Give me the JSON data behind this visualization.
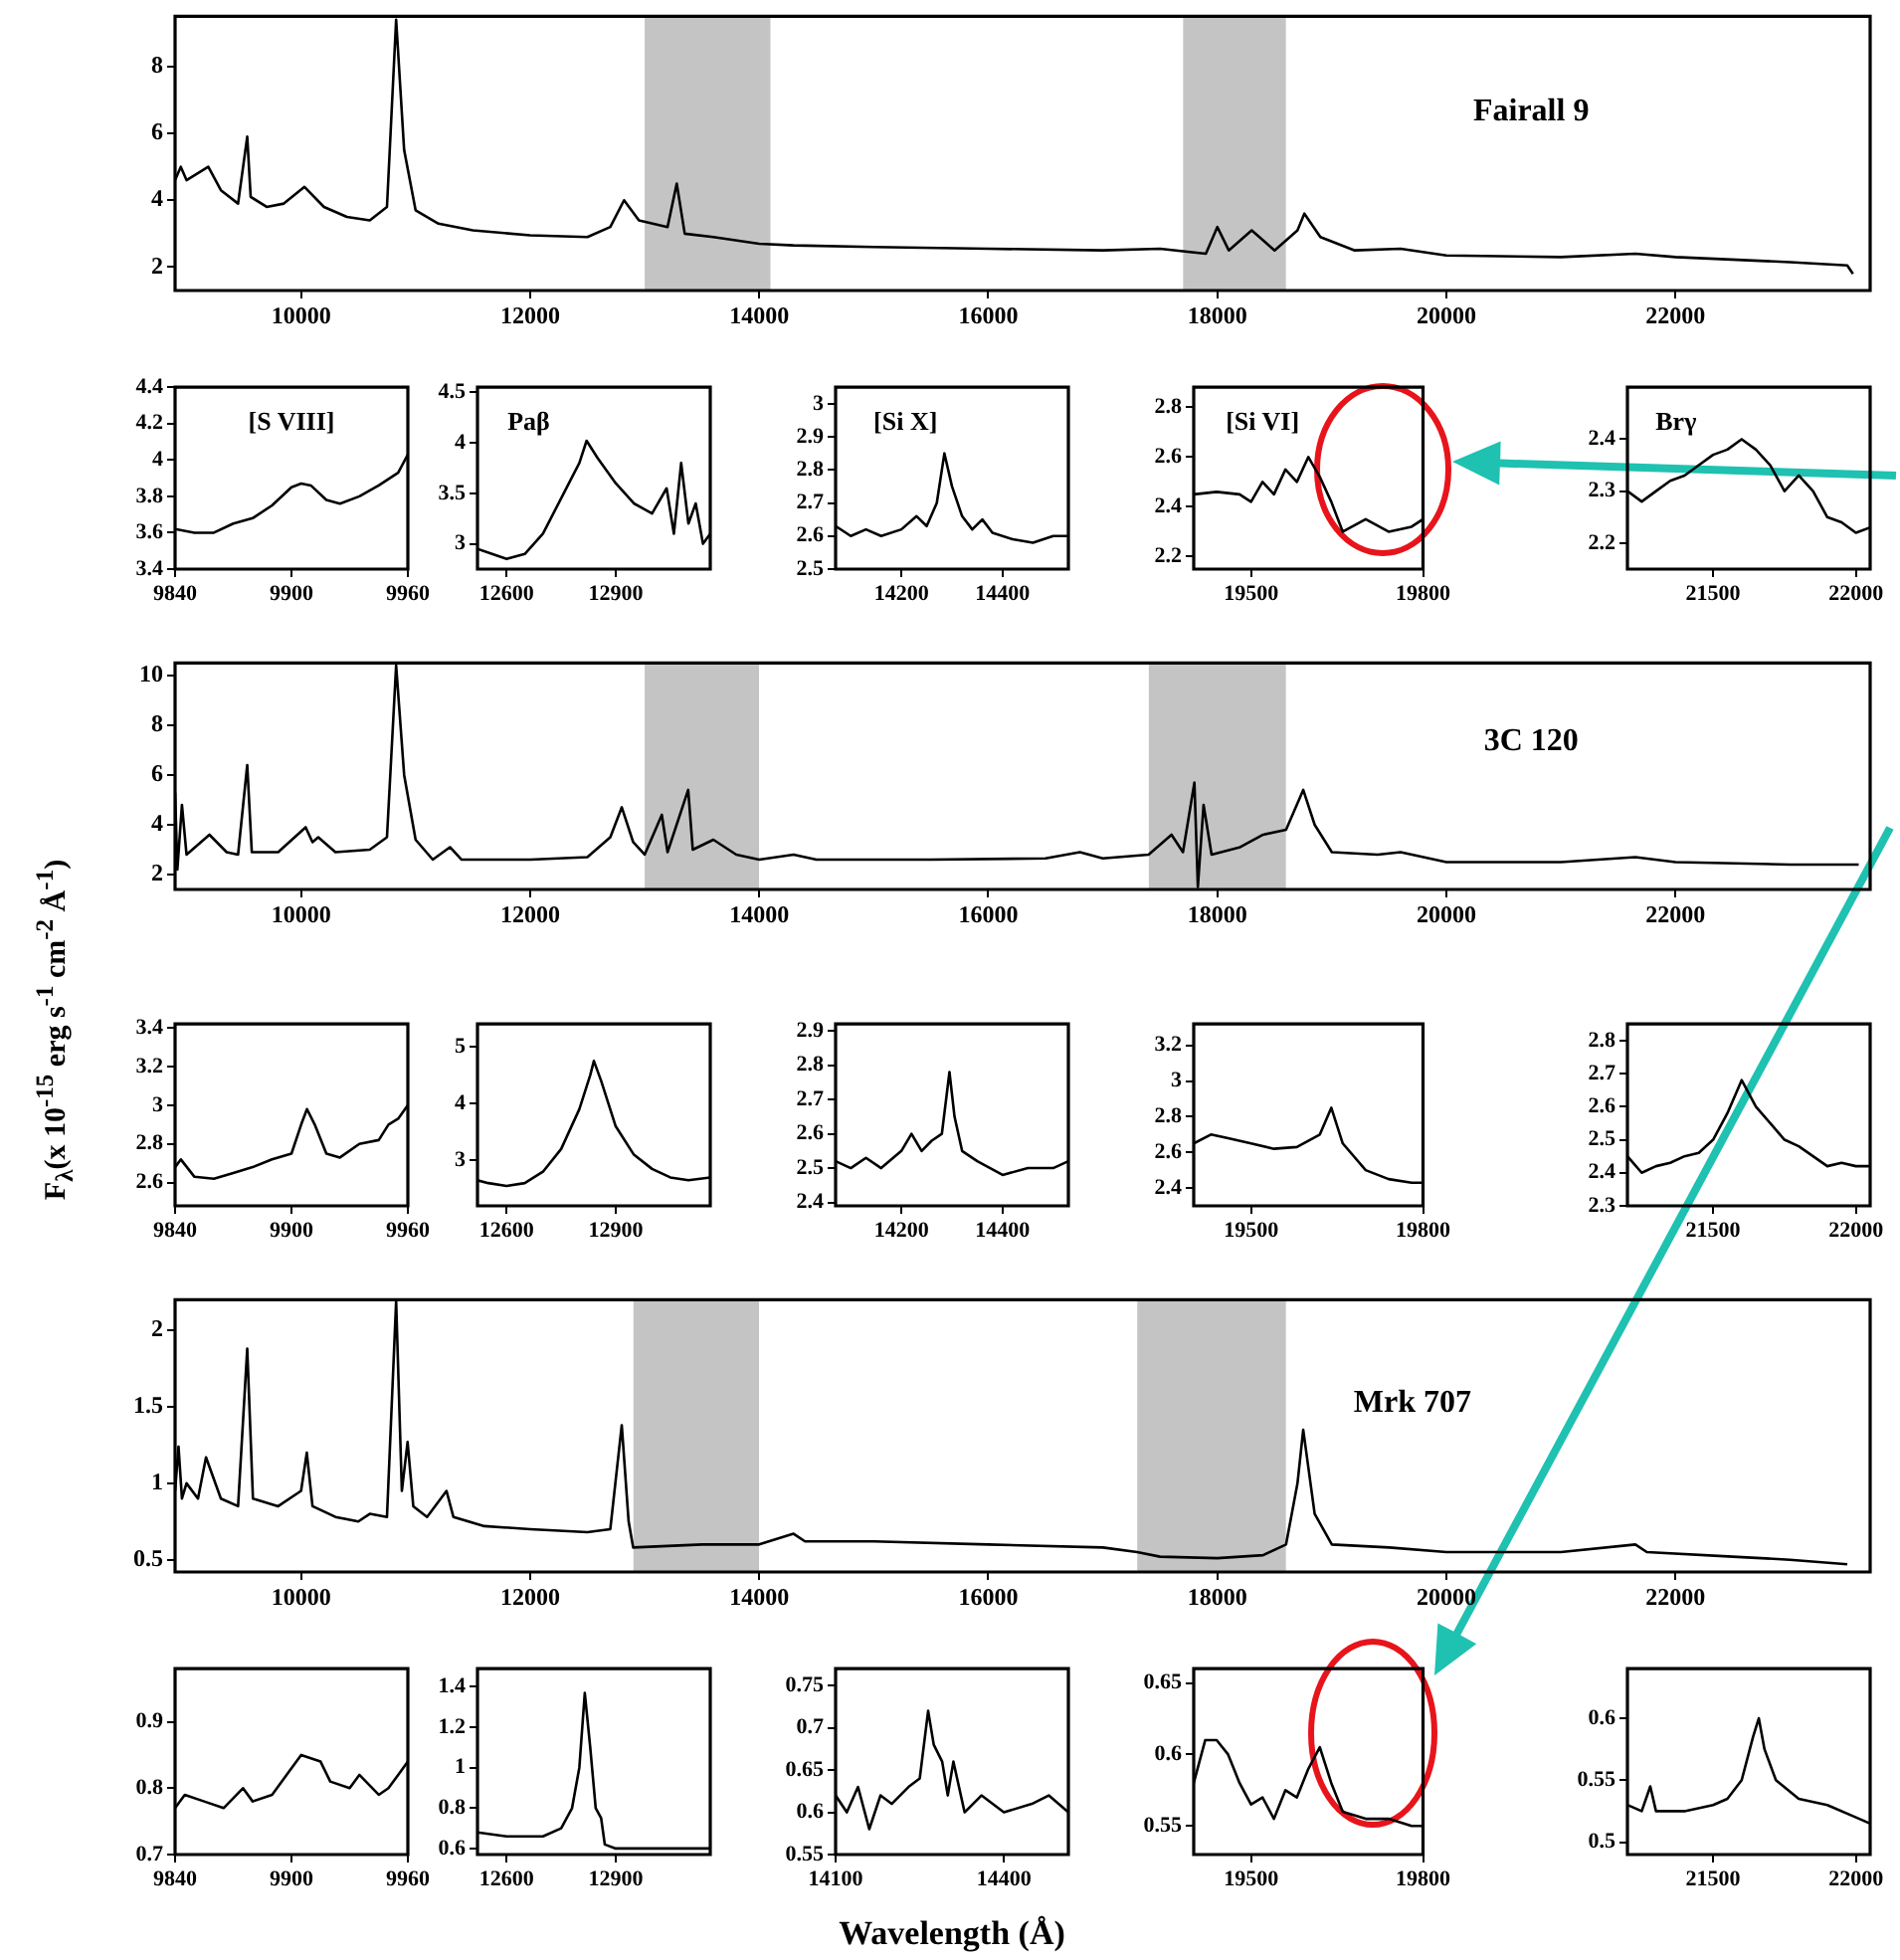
{
  "chart_data": [
    {
      "type": "line",
      "annotations": [
        "Fairall 9"
      ],
      "color": "#000000",
      "xlim": [
        8900,
        23700
      ],
      "ylim": [
        1.3,
        9.5
      ],
      "xticks": [
        10000,
        12000,
        14000,
        16000,
        18000,
        20000,
        22000
      ],
      "yticks": [
        2,
        4,
        6,
        8
      ],
      "bands": [
        {
          "axis": "x",
          "from": 13000,
          "to": 14100,
          "color": "#c4c4c4"
        },
        {
          "axis": "x",
          "from": 17700,
          "to": 18600,
          "color": "#c4c4c4"
        }
      ],
      "x": [
        8900,
        8950,
        9000,
        9190,
        9300,
        9450,
        9530,
        9560,
        9700,
        9850,
        10030,
        10200,
        10400,
        10600,
        10750,
        10830,
        10900,
        11000,
        11200,
        11500,
        12000,
        12500,
        12700,
        12820,
        12950,
        13200,
        13280,
        13350,
        13600,
        14000,
        14300,
        15000,
        16000,
        17000,
        17500,
        17900,
        18000,
        18100,
        18300,
        18500,
        18700,
        18760,
        18900,
        19200,
        19600,
        20000,
        21000,
        21650,
        22000,
        23000,
        23500,
        23550
      ],
      "values": [
        4.6,
        5.0,
        4.6,
        5.0,
        4.3,
        3.9,
        5.9,
        4.1,
        3.8,
        3.9,
        4.4,
        3.8,
        3.5,
        3.4,
        3.8,
        9.4,
        5.5,
        3.7,
        3.3,
        3.1,
        2.95,
        2.9,
        3.2,
        4.0,
        3.4,
        3.2,
        4.5,
        3.0,
        2.9,
        2.7,
        2.65,
        2.6,
        2.55,
        2.5,
        2.55,
        2.4,
        3.2,
        2.5,
        3.1,
        2.5,
        3.1,
        3.6,
        2.9,
        2.5,
        2.55,
        2.35,
        2.3,
        2.4,
        2.3,
        2.15,
        2.05,
        1.8
      ]
    },
    {
      "type": "line",
      "annotations": [
        "[S VIII]"
      ],
      "color": "#000000",
      "xlim": [
        9840,
        9960
      ],
      "ylim": [
        3.4,
        4.4
      ],
      "xticks": [
        9840,
        9900,
        9960
      ],
      "yticks": [
        3.4,
        3.6,
        3.8,
        4,
        4.2,
        4.4
      ],
      "x": [
        9840,
        9850,
        9860,
        9870,
        9880,
        9890,
        9900,
        9905,
        9910,
        9918,
        9925,
        9935,
        9945,
        9955,
        9960
      ],
      "values": [
        3.62,
        3.6,
        3.6,
        3.65,
        3.68,
        3.75,
        3.85,
        3.87,
        3.86,
        3.78,
        3.76,
        3.8,
        3.86,
        3.93,
        4.03
      ]
    },
    {
      "type": "line",
      "annotations": [
        "Paβ"
      ],
      "color": "#000000",
      "xlim": [
        12520,
        13160
      ],
      "ylim": [
        2.75,
        4.55
      ],
      "xticks": [
        12600,
        12900
      ],
      "yticks": [
        3,
        3.5,
        4,
        4.5
      ],
      "x": [
        12520,
        12560,
        12600,
        12650,
        12700,
        12750,
        12800,
        12820,
        12850,
        12900,
        12950,
        13000,
        13040,
        13060,
        13080,
        13100,
        13120,
        13140,
        13160
      ],
      "values": [
        2.95,
        2.9,
        2.85,
        2.9,
        3.1,
        3.45,
        3.8,
        4.02,
        3.85,
        3.6,
        3.4,
        3.3,
        3.55,
        3.1,
        3.8,
        3.2,
        3.4,
        3.0,
        3.1
      ]
    },
    {
      "type": "line",
      "annotations": [
        "[Si X]"
      ],
      "color": "#000000",
      "xlim": [
        14070,
        14530
      ],
      "ylim": [
        2.5,
        3.05
      ],
      "xticks": [
        14200,
        14400
      ],
      "yticks": [
        2.5,
        2.6,
        2.7,
        2.8,
        2.9,
        3
      ],
      "x": [
        14070,
        14100,
        14130,
        14160,
        14200,
        14230,
        14250,
        14270,
        14285,
        14300,
        14320,
        14340,
        14360,
        14380,
        14420,
        14460,
        14500,
        14530
      ],
      "values": [
        2.63,
        2.6,
        2.62,
        2.6,
        2.62,
        2.66,
        2.63,
        2.7,
        2.85,
        2.75,
        2.66,
        2.62,
        2.65,
        2.61,
        2.59,
        2.58,
        2.6,
        2.6
      ]
    },
    {
      "type": "line",
      "annotations": [
        "[Si VI]"
      ],
      "color": "#000000",
      "xlim": [
        19400,
        19800
      ],
      "ylim": [
        2.15,
        2.88
      ],
      "xticks": [
        19500,
        19800
      ],
      "yticks": [
        2.2,
        2.4,
        2.6,
        2.8
      ],
      "x": [
        19400,
        19440,
        19480,
        19500,
        19520,
        19540,
        19560,
        19580,
        19600,
        19620,
        19640,
        19660,
        19700,
        19740,
        19780,
        19800
      ],
      "values": [
        2.45,
        2.46,
        2.45,
        2.42,
        2.5,
        2.45,
        2.55,
        2.5,
        2.6,
        2.52,
        2.42,
        2.3,
        2.35,
        2.3,
        2.32,
        2.35
      ]
    },
    {
      "type": "line",
      "annotations": [
        "Brγ"
      ],
      "color": "#000000",
      "xlim": [
        21200,
        22050
      ],
      "ylim": [
        2.15,
        2.5
      ],
      "xticks": [
        21500,
        22000
      ],
      "yticks": [
        2.2,
        2.3,
        2.4
      ],
      "x": [
        21200,
        21250,
        21300,
        21350,
        21400,
        21450,
        21500,
        21550,
        21600,
        21650,
        21700,
        21750,
        21800,
        21850,
        21900,
        21950,
        22000,
        22050
      ],
      "values": [
        2.3,
        2.28,
        2.3,
        2.32,
        2.33,
        2.35,
        2.37,
        2.38,
        2.4,
        2.38,
        2.35,
        2.3,
        2.33,
        2.3,
        2.25,
        2.24,
        2.22,
        2.23
      ]
    },
    {
      "type": "line",
      "annotations": [
        "3C 120"
      ],
      "ylabel": "F$_{λ}$(x 10$^{-15}$ erg s$^{-1}$ cm$^{-2}$ Å$^{-1}$)",
      "color": "#000000",
      "xlim": [
        8900,
        23700
      ],
      "ylim": [
        1.4,
        10.5
      ],
      "xticks": [
        10000,
        12000,
        14000,
        16000,
        18000,
        20000,
        22000
      ],
      "yticks": [
        2,
        4,
        6,
        8,
        10
      ],
      "bands": [
        {
          "axis": "x",
          "from": 13000,
          "to": 14000,
          "color": "#c4c4c4"
        },
        {
          "axis": "x",
          "from": 17400,
          "to": 18600,
          "color": "#c4c4c4"
        }
      ],
      "x": [
        8900,
        8920,
        8960,
        9000,
        9050,
        9200,
        9350,
        9450,
        9530,
        9570,
        9800,
        10040,
        10100,
        10150,
        10300,
        10600,
        10750,
        10830,
        10900,
        11000,
        11150,
        11300,
        11400,
        12000,
        12500,
        12700,
        12800,
        12900,
        13000,
        13150,
        13200,
        13380,
        13420,
        13600,
        13800,
        14000,
        14300,
        14500,
        15500,
        16500,
        16800,
        17000,
        17400,
        17600,
        17700,
        17800,
        17830,
        17880,
        17950,
        18200,
        18400,
        18600,
        18750,
        18850,
        19000,
        19400,
        19600,
        20000,
        21000,
        21650,
        22000,
        23000,
        23600
      ],
      "values": [
        5.3,
        2.2,
        4.8,
        2.8,
        3.0,
        3.6,
        2.9,
        2.8,
        6.4,
        2.9,
        2.9,
        3.9,
        3.3,
        3.5,
        2.9,
        3.0,
        3.5,
        10.4,
        6.0,
        3.4,
        2.6,
        3.1,
        2.6,
        2.6,
        2.7,
        3.5,
        4.7,
        3.3,
        2.8,
        4.4,
        2.9,
        5.4,
        3.0,
        3.4,
        2.8,
        2.6,
        2.8,
        2.6,
        2.6,
        2.65,
        2.9,
        2.65,
        2.8,
        3.6,
        2.9,
        5.7,
        1.5,
        4.8,
        2.8,
        3.1,
        3.6,
        3.8,
        5.4,
        4.0,
        2.9,
        2.8,
        2.9,
        2.5,
        2.5,
        2.7,
        2.5,
        2.4,
        2.4
      ]
    },
    {
      "type": "line",
      "color": "#000000",
      "xlim": [
        9840,
        9960
      ],
      "ylim": [
        2.48,
        3.42
      ],
      "xticks": [
        9840,
        9900,
        9960
      ],
      "yticks": [
        2.6,
        2.8,
        3,
        3.2,
        3.4
      ],
      "x": [
        9840,
        9843,
        9850,
        9860,
        9870,
        9880,
        9890,
        9900,
        9905,
        9908,
        9912,
        9918,
        9925,
        9935,
        9945,
        9950,
        9955,
        9960
      ],
      "values": [
        2.68,
        2.72,
        2.63,
        2.62,
        2.65,
        2.68,
        2.72,
        2.75,
        2.9,
        2.98,
        2.9,
        2.75,
        2.73,
        2.8,
        2.82,
        2.9,
        2.93,
        3.0
      ]
    },
    {
      "type": "line",
      "color": "#000000",
      "xlim": [
        12520,
        13160
      ],
      "ylim": [
        2.2,
        5.4
      ],
      "xticks": [
        12600,
        12900
      ],
      "yticks": [
        3,
        4,
        5
      ],
      "x": [
        12520,
        12550,
        12600,
        12650,
        12700,
        12750,
        12800,
        12830,
        12840,
        12860,
        12900,
        12950,
        13000,
        13050,
        13100,
        13160
      ],
      "values": [
        2.65,
        2.6,
        2.55,
        2.6,
        2.8,
        3.2,
        3.9,
        4.5,
        4.75,
        4.4,
        3.6,
        3.1,
        2.85,
        2.7,
        2.65,
        2.7
      ]
    },
    {
      "type": "line",
      "color": "#000000",
      "xlim": [
        14070,
        14530
      ],
      "ylim": [
        2.39,
        2.92
      ],
      "xticks": [
        14200,
        14400
      ],
      "yticks": [
        2.4,
        2.5,
        2.6,
        2.7,
        2.8,
        2.9
      ],
      "x": [
        14070,
        14100,
        14130,
        14160,
        14200,
        14220,
        14240,
        14260,
        14280,
        14295,
        14305,
        14320,
        14350,
        14400,
        14450,
        14500,
        14530
      ],
      "values": [
        2.52,
        2.5,
        2.53,
        2.5,
        2.55,
        2.6,
        2.55,
        2.58,
        2.6,
        2.78,
        2.65,
        2.55,
        2.52,
        2.48,
        2.5,
        2.5,
        2.52
      ]
    },
    {
      "type": "line",
      "color": "#000000",
      "xlim": [
        19400,
        19800
      ],
      "ylim": [
        2.3,
        3.32
      ],
      "xticks": [
        19500,
        19800
      ],
      "yticks": [
        2.4,
        2.6,
        2.8,
        3,
        3.2
      ],
      "x": [
        19400,
        19430,
        19460,
        19500,
        19540,
        19580,
        19620,
        19640,
        19660,
        19700,
        19740,
        19780,
        19800
      ],
      "values": [
        2.65,
        2.7,
        2.68,
        2.65,
        2.62,
        2.63,
        2.7,
        2.85,
        2.65,
        2.5,
        2.45,
        2.43,
        2.43
      ]
    },
    {
      "type": "line",
      "color": "#000000",
      "xlim": [
        21200,
        22050
      ],
      "ylim": [
        2.3,
        2.85
      ],
      "xticks": [
        21500,
        22000
      ],
      "yticks": [
        2.3,
        2.4,
        2.5,
        2.6,
        2.7,
        2.8
      ],
      "x": [
        21200,
        21250,
        21300,
        21350,
        21400,
        21450,
        21500,
        21550,
        21600,
        21650,
        21700,
        21750,
        21800,
        21850,
        21900,
        21950,
        22000,
        22050
      ],
      "values": [
        2.45,
        2.4,
        2.42,
        2.43,
        2.45,
        2.46,
        2.5,
        2.58,
        2.68,
        2.6,
        2.55,
        2.5,
        2.48,
        2.45,
        2.42,
        2.43,
        2.42,
        2.42
      ]
    },
    {
      "type": "line",
      "annotations": [
        "Mrk 707"
      ],
      "color": "#000000",
      "xlim": [
        8900,
        23700
      ],
      "ylim": [
        0.42,
        2.2
      ],
      "xticks": [
        10000,
        12000,
        14000,
        16000,
        18000,
        20000,
        22000
      ],
      "yticks": [
        0.5,
        1,
        1.5,
        2
      ],
      "bands": [
        {
          "axis": "x",
          "from": 12900,
          "to": 14000,
          "color": "#c4c4c4"
        },
        {
          "axis": "x",
          "from": 17300,
          "to": 18600,
          "color": "#c4c4c4"
        }
      ],
      "x": [
        8900,
        8930,
        8960,
        9000,
        9100,
        9170,
        9300,
        9450,
        9530,
        9580,
        9800,
        10000,
        10050,
        10100,
        10300,
        10500,
        10600,
        10750,
        10830,
        10880,
        10930,
        10980,
        11100,
        11270,
        11330,
        11600,
        12000,
        12500,
        12700,
        12800,
        12860,
        12900,
        13500,
        14000,
        14300,
        14400,
        15000,
        16000,
        17000,
        17300,
        17500,
        18000,
        18400,
        18600,
        18700,
        18750,
        18850,
        19000,
        19500,
        20000,
        21000,
        21650,
        21750,
        22500,
        23000,
        23500
      ],
      "values": [
        0.95,
        1.24,
        0.9,
        1.0,
        0.9,
        1.17,
        0.9,
        0.85,
        1.88,
        0.9,
        0.85,
        0.95,
        1.2,
        0.85,
        0.78,
        0.75,
        0.8,
        0.78,
        2.19,
        0.95,
        1.27,
        0.85,
        0.78,
        0.95,
        0.78,
        0.72,
        0.7,
        0.68,
        0.7,
        1.38,
        0.75,
        0.58,
        0.6,
        0.6,
        0.67,
        0.62,
        0.62,
        0.6,
        0.58,
        0.55,
        0.52,
        0.51,
        0.53,
        0.6,
        1.0,
        1.35,
        0.8,
        0.6,
        0.58,
        0.55,
        0.55,
        0.6,
        0.55,
        0.52,
        0.5,
        0.47
      ]
    },
    {
      "type": "line",
      "color": "#000000",
      "xlim": [
        9840,
        9960
      ],
      "ylim": [
        0.7,
        0.98
      ],
      "xticks": [
        9840,
        9900,
        9960
      ],
      "yticks": [
        0.7,
        0.8,
        0.9
      ],
      "x": [
        9840,
        9845,
        9855,
        9865,
        9875,
        9880,
        9890,
        9900,
        9905,
        9915,
        9920,
        9930,
        9935,
        9945,
        9950,
        9955,
        9960
      ],
      "values": [
        0.77,
        0.79,
        0.78,
        0.77,
        0.8,
        0.78,
        0.79,
        0.83,
        0.85,
        0.84,
        0.81,
        0.8,
        0.82,
        0.79,
        0.8,
        0.82,
        0.84
      ]
    },
    {
      "type": "line",
      "color": "#000000",
      "xlim": [
        12520,
        13160
      ],
      "ylim": [
        0.57,
        1.49
      ],
      "xticks": [
        12600,
        12900
      ],
      "yticks": [
        0.6,
        0.8,
        1,
        1.2,
        1.4
      ],
      "x": [
        12520,
        12600,
        12700,
        12750,
        12780,
        12800,
        12815,
        12830,
        12845,
        12860,
        12870,
        12900,
        13000,
        13160
      ],
      "values": [
        0.68,
        0.66,
        0.66,
        0.7,
        0.8,
        1.0,
        1.37,
        1.1,
        0.8,
        0.75,
        0.62,
        0.6,
        0.6,
        0.6
      ]
    },
    {
      "type": "line",
      "xlabel": "Wavelength (Å)",
      "color": "#000000",
      "xlim": [
        14100,
        14515
      ],
      "ylim": [
        0.55,
        0.77
      ],
      "xticks": [
        14100,
        14400
      ],
      "yticks": [
        0.55,
        0.6,
        0.65,
        0.7,
        0.75
      ],
      "x": [
        14100,
        14120,
        14140,
        14160,
        14180,
        14200,
        14230,
        14250,
        14265,
        14275,
        14290,
        14300,
        14310,
        14330,
        14360,
        14400,
        14450,
        14480,
        14515
      ],
      "values": [
        0.62,
        0.6,
        0.63,
        0.58,
        0.62,
        0.61,
        0.63,
        0.64,
        0.72,
        0.68,
        0.66,
        0.62,
        0.66,
        0.6,
        0.62,
        0.6,
        0.61,
        0.62,
        0.6
      ]
    },
    {
      "type": "line",
      "color": "#000000",
      "xlim": [
        19400,
        19800
      ],
      "ylim": [
        0.53,
        0.66
      ],
      "xticks": [
        19500,
        19800
      ],
      "yticks": [
        0.55,
        0.6,
        0.65
      ],
      "x": [
        19400,
        19420,
        19440,
        19460,
        19480,
        19500,
        19520,
        19540,
        19560,
        19580,
        19600,
        19620,
        19640,
        19660,
        19700,
        19740,
        19780,
        19800
      ],
      "values": [
        0.58,
        0.61,
        0.61,
        0.6,
        0.58,
        0.565,
        0.57,
        0.555,
        0.575,
        0.57,
        0.59,
        0.605,
        0.58,
        0.56,
        0.555,
        0.555,
        0.55,
        0.55
      ]
    },
    {
      "type": "line",
      "color": "#000000",
      "xlim": [
        21200,
        22050
      ],
      "ylim": [
        0.49,
        0.64
      ],
      "xticks": [
        21500,
        22000
      ],
      "yticks": [
        0.5,
        0.55,
        0.6
      ],
      "x": [
        21200,
        21250,
        21280,
        21300,
        21400,
        21500,
        21550,
        21600,
        21640,
        21660,
        21680,
        21720,
        21800,
        21900,
        22000,
        22050
      ],
      "values": [
        0.53,
        0.525,
        0.545,
        0.525,
        0.525,
        0.53,
        0.535,
        0.55,
        0.585,
        0.6,
        0.575,
        0.55,
        0.535,
        0.53,
        0.52,
        0.515
      ]
    }
  ]
}
